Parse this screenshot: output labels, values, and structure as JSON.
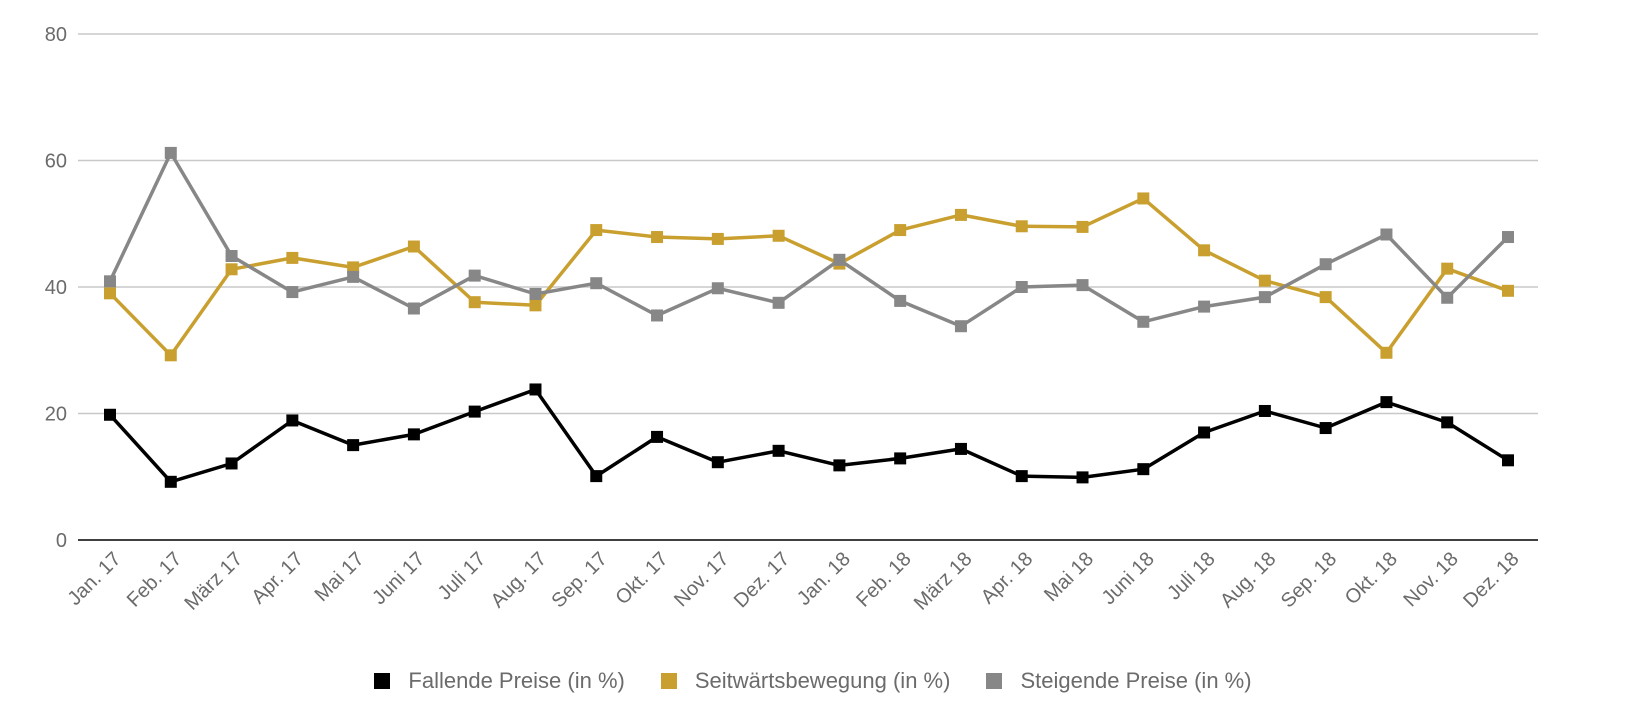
{
  "chart_data": {
    "type": "line",
    "categories": [
      "Jan. 17",
      "Feb. 17",
      "März 17",
      "Apr. 17",
      "Mai 17",
      "Juni 17",
      "Juli 17",
      "Aug. 17",
      "Sep. 17",
      "Okt. 17",
      "Nov. 17",
      "Dez. 17",
      "Jan. 18",
      "Feb. 18",
      "März 18",
      "Apr. 18",
      "Mai 18",
      "Juni 18",
      "Juli 18",
      "Aug. 18",
      "Sep. 18",
      "Okt. 18",
      "Nov. 18",
      "Dez. 18"
    ],
    "series": [
      {
        "name": "Fallende Preise (in %)",
        "color": "#000000",
        "values": [
          19.8,
          9.2,
          12.1,
          18.9,
          15.0,
          16.7,
          20.3,
          23.8,
          10.1,
          16.3,
          12.3,
          14.1,
          11.8,
          12.9,
          14.4,
          10.1,
          9.9,
          11.2,
          17.0,
          20.4,
          17.7,
          21.8,
          18.6,
          12.6
        ]
      },
      {
        "name": "Seitwärtsbewegung (in %)",
        "color": "#c9a030",
        "values": [
          39.0,
          29.2,
          42.8,
          44.6,
          43.1,
          46.4,
          37.6,
          37.1,
          49.0,
          47.9,
          47.6,
          48.1,
          43.7,
          49.0,
          51.4,
          49.6,
          49.5,
          54.0,
          45.8,
          41.0,
          38.4,
          29.6,
          42.9,
          39.4
        ]
      },
      {
        "name": "Steigende Preise (in %)",
        "color": "#878787",
        "values": [
          40.9,
          61.2,
          44.9,
          39.2,
          41.6,
          36.6,
          41.8,
          38.9,
          40.6,
          35.5,
          39.8,
          37.5,
          44.3,
          37.8,
          33.8,
          40.0,
          40.3,
          34.5,
          36.9,
          38.4,
          43.6,
          48.3,
          38.3,
          47.9
        ]
      }
    ],
    "yticks": [
      "0",
      "20",
      "40",
      "60",
      "80"
    ],
    "ylim": [
      0,
      80
    ],
    "grid": true,
    "legend_position": "bottom"
  }
}
